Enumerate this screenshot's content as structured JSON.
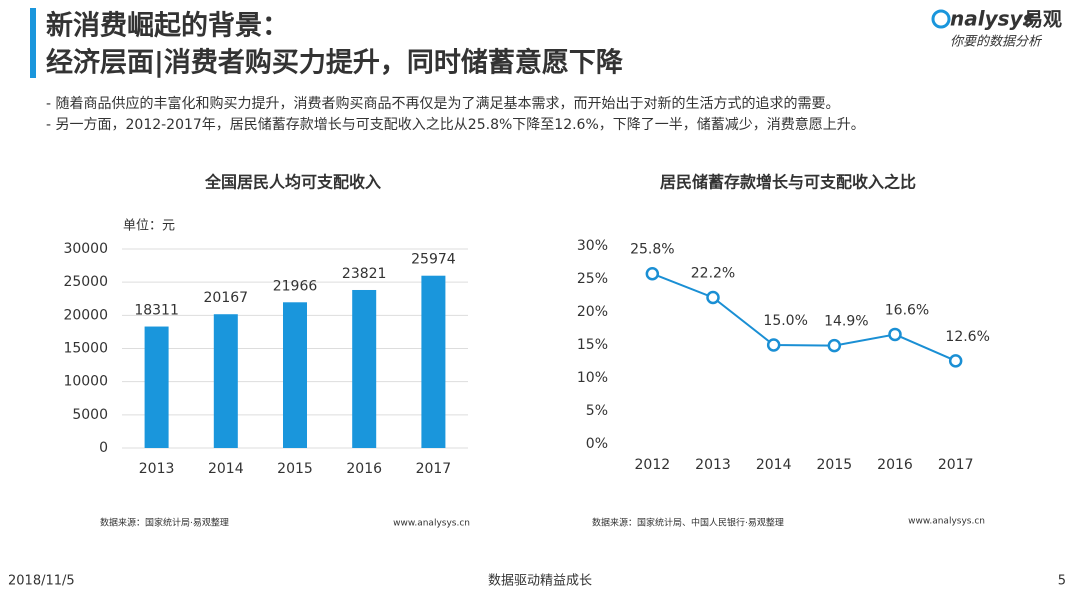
{
  "header": {
    "title_line1": "新消费崛起的背景：",
    "title_line2": "经济层面|消费者购买力提升，同时储蓄意愿下降",
    "brand": "nalysys",
    "brand_cn": "易观",
    "slogan": "你要的数据分析"
  },
  "bullets": [
    "-  随着商品供应的丰富化和购买力提升，消费者购买商品不再仅是为了满足基本需求，而开始出于对新的生活方式的追求的需要。",
    "-  另一方面，2012-2017年，居民储蓄存款增长与可支配收入之比从25.8%下降至12.6%，下降了一半，储蓄减少，消费意愿上升。"
  ],
  "chart_data": [
    {
      "type": "bar",
      "title": "全国居民人均可支配收入",
      "unit": "单位：元",
      "categories": [
        "2013",
        "2014",
        "2015",
        "2016",
        "2017"
      ],
      "values": [
        18311,
        20167,
        21966,
        23821,
        25974
      ],
      "color": "#1a96dc",
      "ylim": [
        0,
        30000
      ],
      "yticks": [
        0,
        5000,
        10000,
        15000,
        20000,
        25000,
        30000
      ],
      "grid": true,
      "source": "数据来源：国家统计局·易观整理",
      "website": "www.analysys.cn"
    },
    {
      "type": "line",
      "title": "居民储蓄存款增长与可支配收入之比",
      "categories": [
        "2012",
        "2013",
        "2014",
        "2015",
        "2016",
        "2017"
      ],
      "values": [
        25.8,
        22.2,
        15.0,
        14.9,
        16.6,
        12.6
      ],
      "value_labels": [
        "25.8%",
        "22.2%",
        "15.0%",
        "14.9%",
        "16.6%",
        "12.6%"
      ],
      "color": "#1a8fd4",
      "ylim": [
        0,
        30
      ],
      "yticks": [
        {
          "value": 0,
          "label": "0%"
        },
        {
          "value": 5,
          "label": "5%"
        },
        {
          "value": 10,
          "label": "10%"
        },
        {
          "value": 15,
          "label": "15%"
        },
        {
          "value": 20,
          "label": "20%"
        },
        {
          "value": 25,
          "label": "25%"
        },
        {
          "value": 30,
          "label": "30%"
        }
      ],
      "grid": false,
      "source": "数据来源：国家统计局、中国人民银行·易观整理",
      "website": "www.analysys.cn"
    }
  ],
  "footer": {
    "date": "2018/11/5",
    "slogan": "数据驱动精益成长",
    "page": "5"
  }
}
